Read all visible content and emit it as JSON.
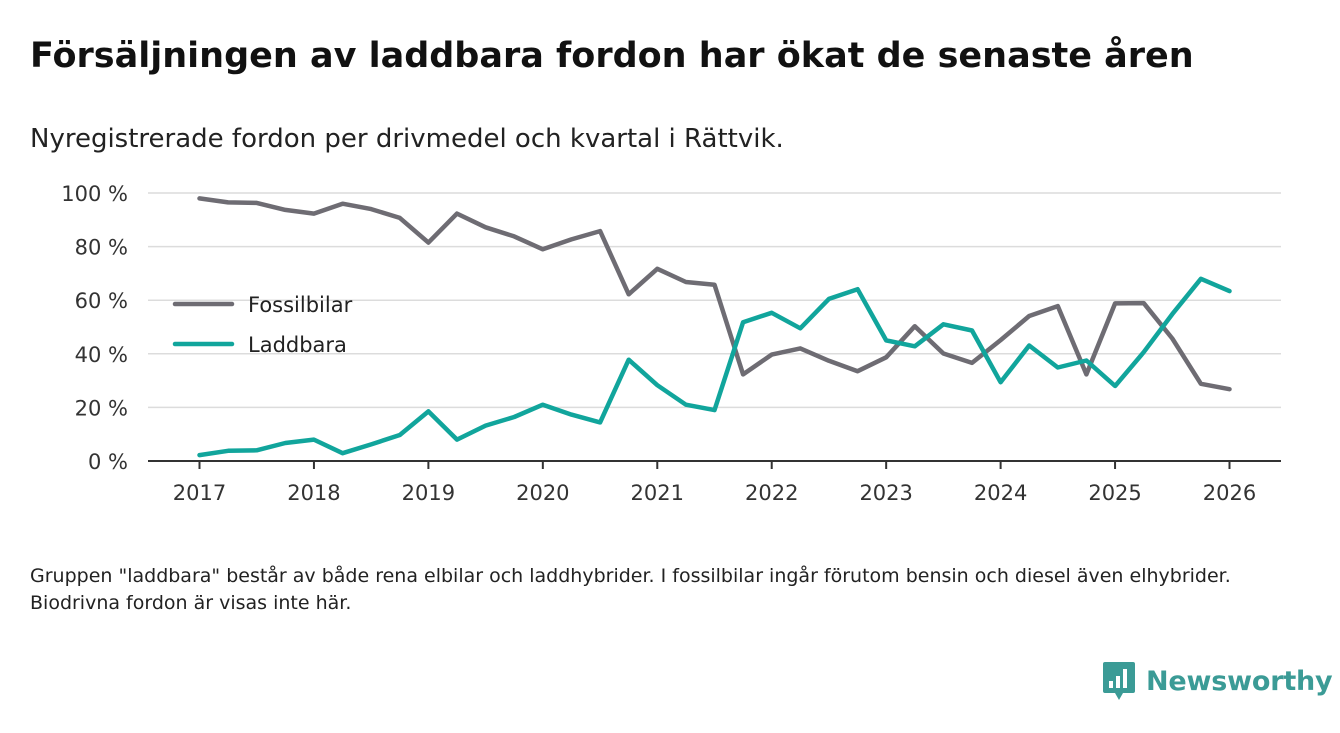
{
  "title": "Försäljningen av laddbara fordon har ökat de senaste åren",
  "subtitle": "Nyregistrerade fordon per drivmedel och kvartal i Rättvik.",
  "note": "Gruppen \"laddbara\" består av både rena elbilar och laddhybrider. I fossilbilar ingår förutom bensin och diesel även elhybrider. Biodrivna fordon är visas inte här.",
  "brand": {
    "name": "Newsworthy",
    "color": "#3b9b96",
    "icon": "newsworthy-logo-icon"
  },
  "chart_data": {
    "type": "line",
    "title": "Försäljningen av laddbara fordon har ökat de senaste åren",
    "subtitle": "Nyregistrerade fordon per drivmedel och kvartal i Rättvik.",
    "xlabel": "",
    "ylabel": "",
    "ylim": [
      0,
      100
    ],
    "xlim": [
      2016.55,
      2026.45
    ],
    "yticks": [
      0,
      20,
      40,
      60,
      80,
      100
    ],
    "ytick_labels": [
      "0 %",
      "20 %",
      "40 %",
      "60 %",
      "80 %",
      "100 %"
    ],
    "xticks": [
      2017,
      2018,
      2019,
      2020,
      2021,
      2022,
      2023,
      2024,
      2025,
      2026
    ],
    "xtick_labels": [
      "2017",
      "2018",
      "2019",
      "2020",
      "2021",
      "2022",
      "2023",
      "2024",
      "2025",
      "2026"
    ],
    "grid": true,
    "legend_position": "left, upper-middle",
    "x": [
      2017.0,
      2017.25,
      2017.5,
      2017.75,
      2018.0,
      2018.25,
      2018.5,
      2018.75,
      2019.0,
      2019.25,
      2019.5,
      2019.75,
      2020.0,
      2020.25,
      2020.5,
      2020.75,
      2021.0,
      2021.25,
      2021.5,
      2021.75,
      2022.0,
      2022.25,
      2022.5,
      2022.75,
      2023.0,
      2023.25,
      2023.5,
      2023.75,
      2024.0,
      2024.25,
      2024.5,
      2024.75,
      2025.0,
      2025.25,
      2025.5,
      2025.75,
      2026.0
    ],
    "series": [
      {
        "name": "Fossilbilar",
        "color": "#6e6c73",
        "values": [
          98,
          96.5,
          96.3,
          93.7,
          92.3,
          96,
          94,
          90.7,
          81.5,
          92.3,
          87.2,
          83.8,
          79,
          82.7,
          85.8,
          62.2,
          71.7,
          66.8,
          65.8,
          32.3,
          39.7,
          42,
          37.4,
          33.5,
          38.7,
          50.3,
          40.1,
          36.6,
          45.1,
          54.1,
          57.8,
          32.3,
          58.8,
          58.9,
          45.7,
          28.8,
          26.8
        ]
      },
      {
        "name": "Laddbara",
        "color": "#11a59c",
        "values": [
          2.2,
          3.8,
          4,
          6.7,
          8,
          2.9,
          6.2,
          9.7,
          18.5,
          8,
          13.2,
          16.4,
          21,
          17.3,
          14.4,
          37.8,
          28.3,
          21,
          19,
          51.8,
          55.3,
          49.5,
          60.5,
          64.1,
          45,
          42.8,
          51,
          48.7,
          29.4,
          43.1,
          34.9,
          37.5,
          28,
          40.6,
          54.8,
          68,
          63.4
        ]
      }
    ]
  }
}
